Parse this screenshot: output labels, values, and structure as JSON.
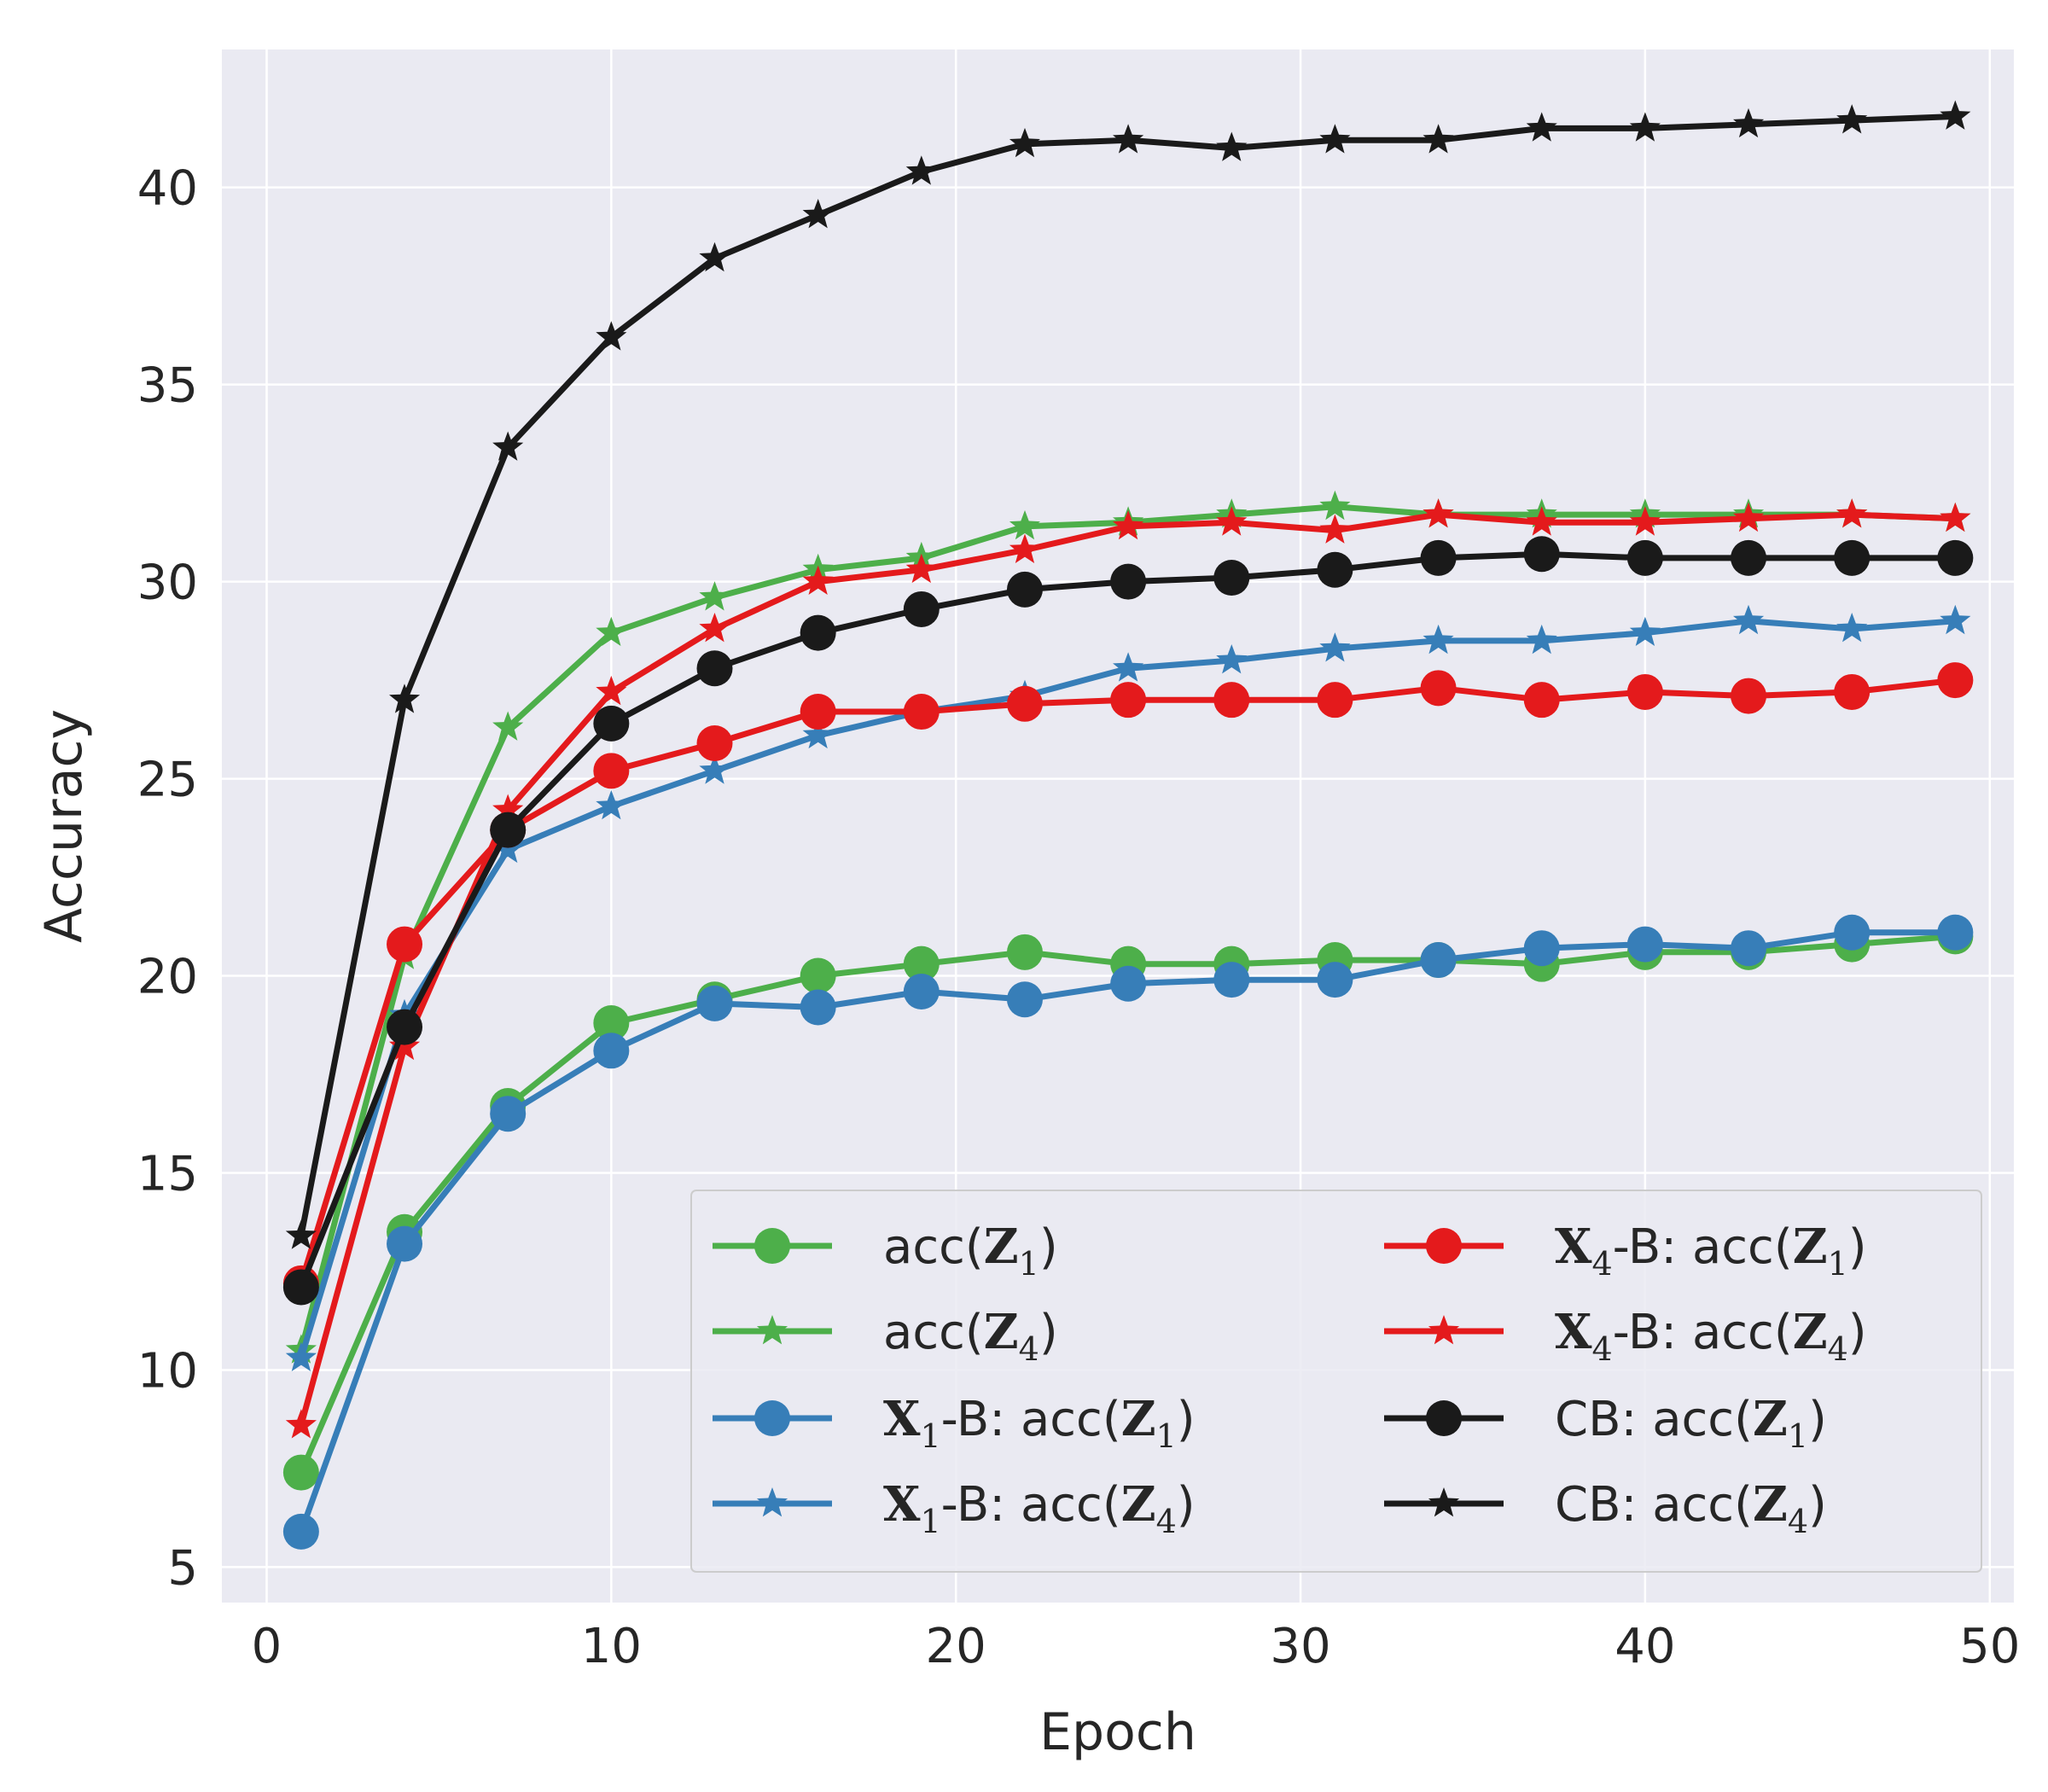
{
  "chart_data": {
    "type": "line",
    "xlabel": "Epoch",
    "ylabel": "Accuracy",
    "xlim": [
      -1.3,
      50.7
    ],
    "ylim": [
      4.1,
      43.5
    ],
    "xticks": [
      0,
      10,
      20,
      30,
      40,
      50
    ],
    "yticks": [
      5,
      10,
      15,
      20,
      25,
      30,
      35,
      40
    ],
    "grid": true,
    "legend_position": "bottom-right",
    "x": [
      1,
      4,
      7,
      10,
      13,
      16,
      19,
      22,
      25,
      28,
      31,
      34,
      37,
      40,
      43,
      46,
      49
    ],
    "series": [
      {
        "name": "acc(Z1)",
        "legend": {
          "prefix": "",
          "pre": "acc(",
          "math": "Z",
          "sub": "1",
          "post": ")"
        },
        "color": "#4daf4a",
        "marker": "circle",
        "values": [
          7.4,
          13.5,
          16.7,
          18.8,
          19.4,
          20.0,
          20.3,
          20.6,
          20.3,
          20.3,
          20.4,
          20.4,
          20.3,
          20.6,
          20.6,
          20.8,
          21.0
        ]
      },
      {
        "name": "acc(Z4)",
        "legend": {
          "prefix": "",
          "pre": "acc(",
          "math": "Z",
          "sub": "4",
          "post": ")"
        },
        "color": "#4daf4a",
        "marker": "star",
        "values": [
          10.5,
          20.5,
          26.3,
          28.7,
          29.6,
          30.3,
          30.6,
          31.4,
          31.5,
          31.7,
          31.9,
          31.7,
          31.7,
          31.7,
          31.7,
          31.7,
          31.6
        ]
      },
      {
        "name": "X1-B: acc(Z1)",
        "legend": {
          "prefix": "X",
          "prefix_sub": "1",
          "pre": "-B: acc(",
          "math": "Z",
          "sub": "1",
          "post": ")"
        },
        "color": "#377eb8",
        "marker": "circle",
        "values": [
          5.9,
          13.2,
          16.5,
          18.1,
          19.3,
          19.2,
          19.6,
          19.4,
          19.8,
          19.9,
          19.9,
          20.4,
          20.7,
          20.8,
          20.7,
          21.1,
          21.1
        ]
      },
      {
        "name": "X1-B: acc(Z4)",
        "legend": {
          "prefix": "X",
          "prefix_sub": "1",
          "pre": "-B: acc(",
          "math": "Z",
          "sub": "4",
          "post": ")"
        },
        "color": "#377eb8",
        "marker": "star",
        "values": [
          10.3,
          19.0,
          23.2,
          24.3,
          25.2,
          26.1,
          26.7,
          27.1,
          27.8,
          28.0,
          28.3,
          28.5,
          28.5,
          28.7,
          29.0,
          28.8,
          29.0
        ]
      },
      {
        "name": "X4-B: acc(Z1)",
        "legend": {
          "prefix": "X",
          "prefix_sub": "4",
          "pre": "-B: acc(",
          "math": "Z",
          "sub": "1",
          "post": ")"
        },
        "color": "#e41a1c",
        "marker": "circle",
        "values": [
          12.2,
          20.8,
          23.7,
          25.2,
          25.9,
          26.7,
          26.7,
          26.9,
          27.0,
          27.0,
          27.0,
          27.3,
          27.0,
          27.2,
          27.1,
          27.2,
          27.5
        ]
      },
      {
        "name": "X4-B: acc(Z4)",
        "legend": {
          "prefix": "X",
          "prefix_sub": "4",
          "pre": "-B: acc(",
          "math": "Z",
          "sub": "4",
          "post": ")"
        },
        "color": "#e41a1c",
        "marker": "star",
        "values": [
          8.6,
          18.2,
          24.2,
          27.2,
          28.8,
          30.0,
          30.3,
          30.8,
          31.4,
          31.5,
          31.3,
          31.7,
          31.5,
          31.5,
          31.6,
          31.7,
          31.6
        ]
      },
      {
        "name": "CB: acc(Z1)",
        "legend": {
          "prefix": "",
          "pre": "CB: acc(",
          "math": "Z",
          "sub": "1",
          "post": ")"
        },
        "color": "#1a1a1a",
        "marker": "circle",
        "values": [
          12.1,
          18.7,
          23.7,
          26.4,
          27.8,
          28.7,
          29.3,
          29.8,
          30.0,
          30.1,
          30.3,
          30.6,
          30.7,
          30.6,
          30.6,
          30.6,
          30.6
        ]
      },
      {
        "name": "CB: acc(Z4)",
        "legend": {
          "prefix": "",
          "pre": "CB: acc(",
          "math": "Z",
          "sub": "4",
          "post": ")"
        },
        "color": "#1a1a1a",
        "marker": "star",
        "values": [
          13.4,
          27.0,
          33.4,
          36.2,
          38.2,
          39.3,
          40.4,
          41.1,
          41.2,
          41.0,
          41.2,
          41.2,
          41.5,
          41.5,
          41.6,
          41.7,
          41.8
        ]
      }
    ]
  }
}
